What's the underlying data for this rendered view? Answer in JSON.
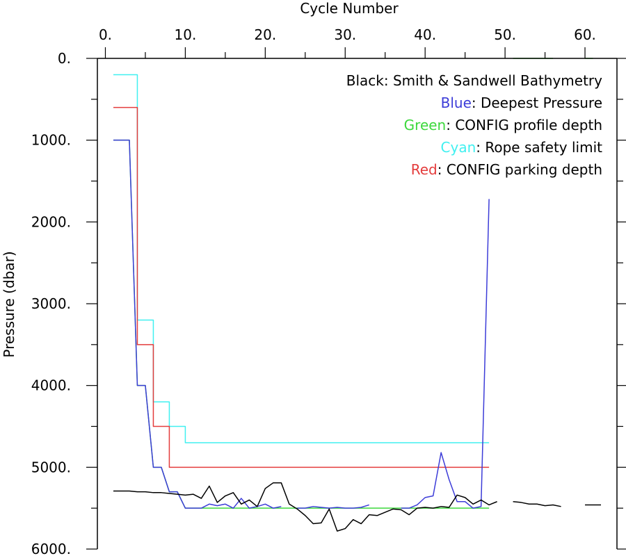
{
  "chart_data": {
    "type": "line",
    "xlabel": "Cycle Number",
    "ylabel": "Pressure (dbar)",
    "xlim": [
      -1,
      64
    ],
    "ylim": [
      0,
      6000
    ],
    "y_inverted": true,
    "x_axis_position": "top",
    "x_ticks": [
      0,
      10,
      20,
      30,
      40,
      50,
      60
    ],
    "x_tick_labels": [
      "0.",
      "10.",
      "20.",
      "30.",
      "40.",
      "50.",
      "60."
    ],
    "y_ticks": [
      0,
      1000,
      2000,
      3000,
      4000,
      5000,
      6000
    ],
    "y_tick_labels": [
      "0.",
      "1000.",
      "2000.",
      "3000.",
      "4000.",
      "5000.",
      "6000."
    ],
    "legend_placement": "top-right",
    "legend": [
      {
        "color_name": "Black",
        "text": ": Smith & Sandwell Bathymetry",
        "color": "#000000"
      },
      {
        "color_name": "Blue",
        "text": ": Deepest Pressure",
        "color": "#3c3cd8"
      },
      {
        "color_name": "Green",
        "text": ": CONFIG profile depth",
        "color": "#3cd83c"
      },
      {
        "color_name": "Cyan",
        "text": ": Rope safety limit",
        "color": "#40f0f0"
      },
      {
        "color_name": "Red",
        "text": ": CONFIG parking depth",
        "color": "#e43c3c"
      }
    ],
    "series": [
      {
        "color": "#40f0f0",
        "line": "step",
        "x": [
          1,
          2,
          3,
          4,
          5,
          6,
          7,
          8,
          9,
          10,
          48
        ],
        "y": [
          200,
          200,
          200,
          3200,
          3200,
          4200,
          4200,
          4500,
          4500,
          4700,
          4700
        ]
      },
      {
        "color": "#e43c3c",
        "line": "step",
        "x": [
          1,
          2,
          3,
          4,
          5,
          6,
          7,
          8,
          48
        ],
        "y": [
          600,
          600,
          600,
          3500,
          3500,
          4500,
          4500,
          5000,
          5000
        ]
      },
      {
        "color": "#3cd83c",
        "line": "straight",
        "x": [
          1,
          2,
          3,
          4,
          5,
          6,
          7,
          8,
          9,
          10,
          48
        ],
        "y": [
          1000,
          1000,
          1000,
          4000,
          4000,
          5000,
          5000,
          5300,
          5300,
          5500,
          5500
        ]
      },
      {
        "color": "#3cd83c",
        "line": "straight",
        "x": [
          51,
          56
        ],
        "y": [
          0,
          0
        ]
      },
      {
        "color": "#3cd83c",
        "line": "straight",
        "x": [
          60,
          61
        ],
        "y": [
          0,
          0
        ]
      },
      {
        "color": "#3c3cd8",
        "line": "straight",
        "x": [
          1,
          2,
          3,
          4,
          5,
          6,
          7,
          8,
          9,
          10,
          11,
          12,
          13,
          14,
          15,
          16,
          17,
          18,
          19,
          20,
          21,
          22
        ],
        "y": [
          1000,
          1000,
          1000,
          4000,
          4000,
          5000,
          5000,
          5300,
          5300,
          5500,
          5500,
          5500,
          5450,
          5470,
          5450,
          5500,
          5380,
          5500,
          5480,
          5450,
          5500,
          5480
        ]
      },
      {
        "color": "#3c3cd8",
        "line": "straight",
        "x": [
          24,
          25,
          26,
          27,
          28,
          29,
          30,
          31,
          32,
          33
        ],
        "y": [
          5500,
          5500,
          5480,
          5490,
          5500,
          5490,
          5500,
          5500,
          5490,
          5460
        ]
      },
      {
        "color": "#3c3cd8",
        "line": "straight",
        "x": [
          37,
          38,
          39,
          40,
          41,
          42,
          43,
          44,
          45,
          46,
          47,
          48
        ],
        "y": [
          5500,
          5500,
          5460,
          5370,
          5350,
          4820,
          5150,
          5420,
          5420,
          5500,
          5480,
          1720
        ]
      },
      {
        "color": "#000000",
        "line": "straight",
        "x": [
          1,
          2,
          3,
          4,
          5,
          6,
          7,
          8,
          9,
          10,
          11,
          12,
          13,
          14,
          15,
          16,
          17,
          18,
          19,
          20,
          21,
          22,
          23,
          24,
          25,
          26,
          27,
          28,
          29,
          30,
          31,
          32,
          33,
          34,
          35,
          36,
          37,
          38,
          39,
          40,
          41,
          42,
          43,
          44,
          45,
          46,
          47,
          48,
          49
        ],
        "y": [
          5290,
          5290,
          5290,
          5300,
          5300,
          5310,
          5310,
          5320,
          5330,
          5340,
          5330,
          5380,
          5230,
          5430,
          5350,
          5310,
          5450,
          5400,
          5480,
          5260,
          5190,
          5190,
          5450,
          5510,
          5590,
          5690,
          5680,
          5510,
          5780,
          5750,
          5640,
          5690,
          5580,
          5590,
          5550,
          5510,
          5520,
          5580,
          5500,
          5490,
          5500,
          5480,
          5490,
          5340,
          5370,
          5450,
          5400,
          5460,
          5420
        ]
      },
      {
        "color": "#000000",
        "line": "straight",
        "x": [
          51,
          52,
          53,
          54,
          55,
          56,
          57
        ],
        "y": [
          5420,
          5430,
          5450,
          5450,
          5470,
          5460,
          5480
        ]
      },
      {
        "color": "#000000",
        "line": "straight",
        "x": [
          60,
          61,
          62
        ],
        "y": [
          5460,
          5460,
          5460
        ]
      }
    ]
  }
}
